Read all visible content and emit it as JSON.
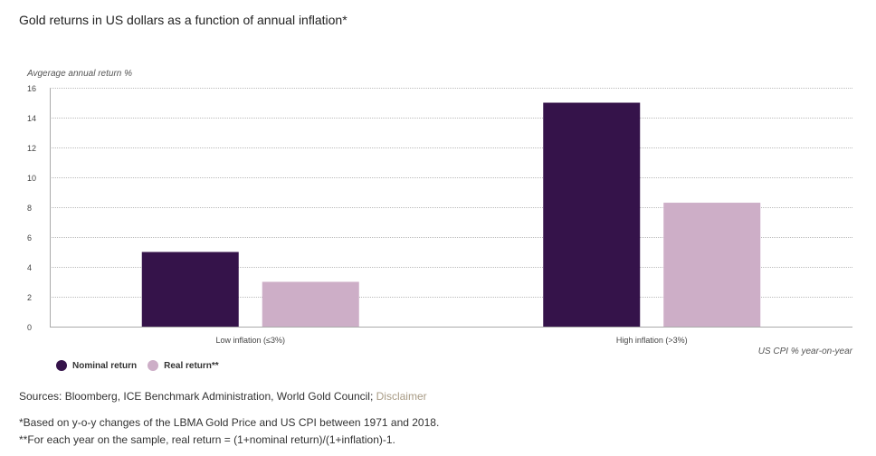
{
  "chart_data": {
    "type": "bar",
    "title": "Gold returns in US dollars as a function of annual inflation*",
    "ylabel": "Avgerage annual return %",
    "xlabel": "US CPI % year-on-year",
    "categories": [
      "Low inflation (≤3%)",
      "High inflation (>3%)"
    ],
    "series": [
      {
        "name": "Nominal return",
        "values": [
          5.0,
          15.0
        ],
        "color": "#35134a"
      },
      {
        "name": "Real return**",
        "values": [
          3.0,
          8.3
        ],
        "color": "#cdaec7"
      }
    ],
    "ylim": [
      0,
      16
    ],
    "yticks": [
      0,
      2,
      4,
      6,
      8,
      10,
      12,
      14,
      16
    ],
    "grid": true,
    "legend": "bottom-left"
  },
  "sources": {
    "text": "Sources: Bloomberg, ICE Benchmark Administration, World Gold Council; ",
    "link": "Disclaimer"
  },
  "notes": [
    "*Based on y-o-y changes of the LBMA Gold Price and US CPI between 1971 and 2018.",
    "**For each year on the sample, real return = (1+nominal return)/(1+inflation)-1."
  ]
}
